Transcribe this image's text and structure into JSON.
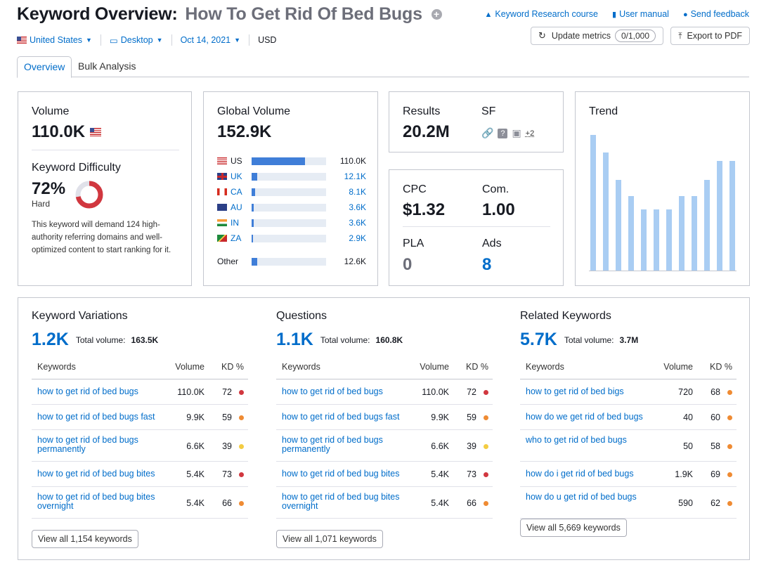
{
  "header": {
    "title_prefix": "Keyword Overview:",
    "keyword": "How To Get Rid Of Bed Bugs",
    "links": [
      "Keyword Research course",
      "User manual",
      "Send feedback"
    ],
    "update_metrics": "Update metrics",
    "update_count": "0/1,000",
    "export": "Export to PDF"
  },
  "filters": {
    "country": "United States",
    "device": "Desktop",
    "date": "Oct 14, 2021",
    "currency": "USD"
  },
  "tabs": [
    "Overview",
    "Bulk Analysis"
  ],
  "volume": {
    "label": "Volume",
    "value": "110.0K",
    "kd_label": "Keyword Difficulty",
    "kd_value": "72%",
    "kd_percent": 72,
    "kd_level": "Hard",
    "kd_text": "This keyword will demand 124 high-authority referring domains and well-optimized content to start ranking for it."
  },
  "global": {
    "label": "Global Volume",
    "value": "152.9K",
    "countries": [
      {
        "code": "US",
        "value": "110.0K",
        "share": 0.72
      },
      {
        "code": "UK",
        "value": "12.1K",
        "share": 0.08
      },
      {
        "code": "CA",
        "value": "8.1K",
        "share": 0.05
      },
      {
        "code": "AU",
        "value": "3.6K",
        "share": 0.03
      },
      {
        "code": "IN",
        "value": "3.6K",
        "share": 0.03
      },
      {
        "code": "ZA",
        "value": "2.9K",
        "share": 0.02
      }
    ],
    "other_label": "Other",
    "other_value": "12.6K",
    "other_share": 0.08
  },
  "results": {
    "label": "Results",
    "value": "20.2M",
    "sf_label": "SF",
    "sf_more": "+2"
  },
  "cpc": {
    "cpc_label": "CPC",
    "cpc_value": "$1.32",
    "com_label": "Com.",
    "com_value": "1.00",
    "pla_label": "PLA",
    "pla_value": "0",
    "ads_label": "Ads",
    "ads_value": "8"
  },
  "trend": {
    "label": "Trend",
    "values": [
      100,
      87,
      67,
      55,
      45,
      45,
      45,
      55,
      55,
      67,
      81,
      81
    ]
  },
  "sections": [
    {
      "title": "Keyword Variations",
      "count": "1.2K",
      "total_label": "Total volume:",
      "total": "163.5K",
      "headers": [
        "Keywords",
        "Volume",
        "KD %"
      ],
      "rows": [
        {
          "kw": "how to get rid of bed bugs",
          "vol": "110.0K",
          "kd": "72"
        },
        {
          "kw": "how to get rid of bed bugs fast",
          "vol": "9.9K",
          "kd": "59"
        },
        {
          "kw": "how to get rid of bed bugs permanently",
          "vol": "6.6K",
          "kd": "39"
        },
        {
          "kw": "how to get rid of bed bug bites",
          "vol": "5.4K",
          "kd": "73"
        },
        {
          "kw": "how to get rid of bed bug bites overnight",
          "vol": "5.4K",
          "kd": "66"
        }
      ],
      "view_all": "View all 1,154 keywords"
    },
    {
      "title": "Questions",
      "count": "1.1K",
      "total_label": "Total volume:",
      "total": "160.8K",
      "headers": [
        "Keywords",
        "Volume",
        "KD %"
      ],
      "rows": [
        {
          "kw": "how to get rid of bed bugs",
          "vol": "110.0K",
          "kd": "72"
        },
        {
          "kw": "how to get rid of bed bugs fast",
          "vol": "9.9K",
          "kd": "59"
        },
        {
          "kw": "how to get rid of bed bugs permanently",
          "vol": "6.6K",
          "kd": "39"
        },
        {
          "kw": "how to get rid of bed bug bites",
          "vol": "5.4K",
          "kd": "73"
        },
        {
          "kw": "how to get rid of bed bug bites overnight",
          "vol": "5.4K",
          "kd": "66"
        }
      ],
      "view_all": "View all 1,071 keywords"
    },
    {
      "title": "Related Keywords",
      "count": "5.7K",
      "total_label": "Total volume:",
      "total": "3.7M",
      "headers": [
        "Keywords",
        "Volume",
        "KD %"
      ],
      "rows": [
        {
          "kw": "how to get rid of bed bigs",
          "vol": "720",
          "kd": "68"
        },
        {
          "kw": "how do we get rid of bed bugs",
          "vol": "40",
          "kd": "60"
        },
        {
          "kw": "who to get rid of bed bugs",
          "vol": "50",
          "kd": "58"
        },
        {
          "kw": "how do i get rid of bed bugs",
          "vol": "1.9K",
          "kd": "69"
        },
        {
          "kw": "how do u get rid of bed bugs",
          "vol": "590",
          "kd": "62"
        }
      ],
      "view_all": "View all 5,669 keywords"
    }
  ],
  "colors": {
    "accent": "#006dca",
    "kd_hard": "#d1373f",
    "kd_difficult": "#ef8b33",
    "kd_possible": "#f3cc42",
    "bar": "#3f7ed8",
    "trend": "#a9cdf3"
  }
}
